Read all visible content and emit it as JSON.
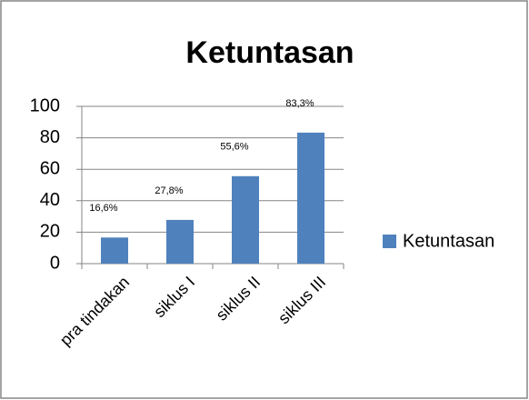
{
  "chart_data": {
    "type": "bar",
    "title": "Ketuntasan",
    "categories": [
      "pra tindakan",
      "siklus I",
      "siklus II",
      "siklus III"
    ],
    "series": [
      {
        "name": "Ketuntasan",
        "color": "#4f81bd",
        "values": [
          16.6,
          27.8,
          55.6,
          83.3
        ],
        "value_labels": [
          "16,6%",
          "27,8%",
          "55,6%",
          "83,3%"
        ]
      }
    ],
    "ylim": [
      0,
      100
    ],
    "yticks": [
      0,
      20,
      40,
      60,
      80,
      100
    ],
    "grid": true,
    "legend": "right"
  }
}
